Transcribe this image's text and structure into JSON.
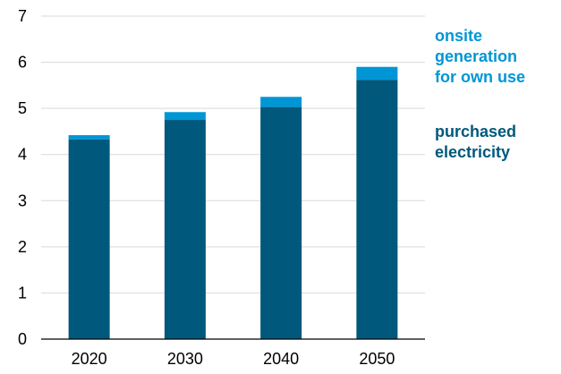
{
  "chart_data": {
    "type": "bar",
    "stacked": true,
    "categories": [
      "2020",
      "2030",
      "2040",
      "2050"
    ],
    "series": [
      {
        "name": "purchased electricity",
        "legend_lines": [
          "purchased",
          "electricity"
        ],
        "color": "#00587c",
        "values": [
          4.33,
          4.75,
          5.03,
          5.62
        ]
      },
      {
        "name": "onsite generation for own use",
        "legend_lines": [
          "onsite",
          "generation",
          "for own use"
        ],
        "color": "#0096d6",
        "values": [
          0.09,
          0.17,
          0.22,
          0.28
        ]
      }
    ],
    "ylim": [
      0,
      7
    ],
    "yticks": [
      "0",
      "1",
      "2",
      "3",
      "4",
      "5",
      "6",
      "7"
    ],
    "title": "",
    "xlabel": "",
    "ylabel": "",
    "grid": "horizontal",
    "grid_color": "#d9d9d9",
    "legend_position": "right"
  }
}
